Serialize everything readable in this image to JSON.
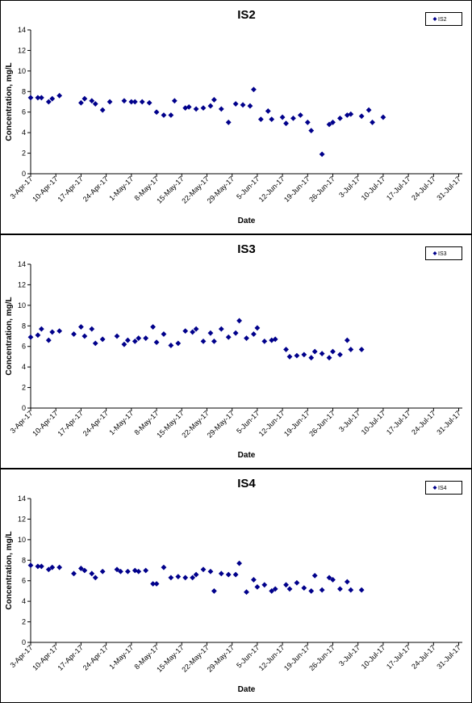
{
  "chart_data": [
    {
      "type": "scatter",
      "title": "IS2",
      "xlabel": "Date",
      "ylabel": "Concentration, mg/L",
      "ylim": [
        0,
        14
      ],
      "yticks": [
        0,
        2,
        4,
        6,
        8,
        10,
        12,
        14
      ],
      "xlim": [
        "2017-04-03",
        "2017-08-01"
      ],
      "xticks": [
        "3-Apr-17",
        "10-Apr-17",
        "17-Apr-17",
        "24-Apr-17",
        "1-May-17",
        "8-May-17",
        "15-May-17",
        "22-May-17",
        "29-May-17",
        "5-Jun-17",
        "12-Jun-17",
        "19-Jun-17",
        "26-Jun-17",
        "3-Jul-17",
        "10-Jul-17",
        "17-Jul-17",
        "24-Jul-17",
        "31-Jul-17"
      ],
      "grid": false,
      "legend": "top-right",
      "series": [
        {
          "name": "IS2",
          "color": "#00008b",
          "marker": "diamond",
          "points": [
            [
              "2017-04-03",
              7.4
            ],
            [
              "2017-04-05",
              7.4
            ],
            [
              "2017-04-06",
              7.4
            ],
            [
              "2017-04-08",
              7.0
            ],
            [
              "2017-04-09",
              7.3
            ],
            [
              "2017-04-11",
              7.6
            ],
            [
              "2017-04-17",
              6.9
            ],
            [
              "2017-04-18",
              7.3
            ],
            [
              "2017-04-20",
              7.1
            ],
            [
              "2017-04-21",
              6.8
            ],
            [
              "2017-04-23",
              6.2
            ],
            [
              "2017-04-25",
              7.0
            ],
            [
              "2017-04-29",
              7.1
            ],
            [
              "2017-05-01",
              7.0
            ],
            [
              "2017-05-02",
              7.0
            ],
            [
              "2017-05-04",
              7.0
            ],
            [
              "2017-05-06",
              6.9
            ],
            [
              "2017-05-08",
              6.0
            ],
            [
              "2017-05-10",
              5.7
            ],
            [
              "2017-05-12",
              5.7
            ],
            [
              "2017-05-13",
              7.1
            ],
            [
              "2017-05-16",
              6.4
            ],
            [
              "2017-05-17",
              6.5
            ],
            [
              "2017-05-19",
              6.3
            ],
            [
              "2017-05-21",
              6.4
            ],
            [
              "2017-05-23",
              6.6
            ],
            [
              "2017-05-24",
              7.2
            ],
            [
              "2017-05-26",
              6.3
            ],
            [
              "2017-05-28",
              5.0
            ],
            [
              "2017-05-30",
              6.8
            ],
            [
              "2017-06-01",
              6.7
            ],
            [
              "2017-06-03",
              6.6
            ],
            [
              "2017-06-04",
              8.2
            ],
            [
              "2017-06-06",
              5.3
            ],
            [
              "2017-06-08",
              6.1
            ],
            [
              "2017-06-09",
              5.3
            ],
            [
              "2017-06-12",
              5.5
            ],
            [
              "2017-06-13",
              4.9
            ],
            [
              "2017-06-15",
              5.4
            ],
            [
              "2017-06-17",
              5.7
            ],
            [
              "2017-06-19",
              5.0
            ],
            [
              "2017-06-20",
              4.2
            ],
            [
              "2017-06-23",
              1.9
            ],
            [
              "2017-06-25",
              4.8
            ],
            [
              "2017-06-26",
              5.0
            ],
            [
              "2017-06-28",
              5.4
            ],
            [
              "2017-06-30",
              5.7
            ],
            [
              "2017-07-01",
              5.8
            ],
            [
              "2017-07-04",
              5.6
            ],
            [
              "2017-07-06",
              6.2
            ],
            [
              "2017-07-07",
              5.0
            ],
            [
              "2017-07-10",
              5.5
            ]
          ]
        }
      ]
    },
    {
      "type": "scatter",
      "title": "IS3",
      "xlabel": "Date",
      "ylabel": "Concentration, mg/L",
      "ylim": [
        0,
        14
      ],
      "yticks": [
        0,
        2,
        4,
        6,
        8,
        10,
        12,
        14
      ],
      "xlim": [
        "2017-04-03",
        "2017-08-01"
      ],
      "xticks": [
        "3-Apr-17",
        "10-Apr-17",
        "17-Apr-17",
        "24-Apr-17",
        "1-May-17",
        "8-May-17",
        "15-May-17",
        "22-May-17",
        "29-May-17",
        "5-Jun-17",
        "12-Jun-17",
        "19-Jun-17",
        "26-Jun-17",
        "3-Jul-17",
        "10-Jul-17",
        "17-Jul-17",
        "24-Jul-17",
        "31-Jul-17"
      ],
      "grid": false,
      "legend": "top-right",
      "series": [
        {
          "name": "IS3",
          "color": "#00008b",
          "marker": "diamond",
          "points": [
            [
              "2017-04-03",
              6.9
            ],
            [
              "2017-04-05",
              7.1
            ],
            [
              "2017-04-06",
              7.7
            ],
            [
              "2017-04-08",
              6.6
            ],
            [
              "2017-04-09",
              7.4
            ],
            [
              "2017-04-11",
              7.5
            ],
            [
              "2017-04-15",
              7.2
            ],
            [
              "2017-04-17",
              7.9
            ],
            [
              "2017-04-18",
              7.0
            ],
            [
              "2017-04-20",
              7.7
            ],
            [
              "2017-04-21",
              6.3
            ],
            [
              "2017-04-23",
              6.7
            ],
            [
              "2017-04-27",
              7.0
            ],
            [
              "2017-04-29",
              6.2
            ],
            [
              "2017-04-30",
              6.6
            ],
            [
              "2017-05-02",
              6.5
            ],
            [
              "2017-05-03",
              6.8
            ],
            [
              "2017-05-05",
              6.8
            ],
            [
              "2017-05-07",
              7.9
            ],
            [
              "2017-05-08",
              6.4
            ],
            [
              "2017-05-10",
              7.2
            ],
            [
              "2017-05-12",
              6.1
            ],
            [
              "2017-05-14",
              6.3
            ],
            [
              "2017-05-16",
              7.5
            ],
            [
              "2017-05-18",
              7.4
            ],
            [
              "2017-05-19",
              7.7
            ],
            [
              "2017-05-21",
              6.5
            ],
            [
              "2017-05-23",
              7.3
            ],
            [
              "2017-05-24",
              6.5
            ],
            [
              "2017-05-26",
              7.7
            ],
            [
              "2017-05-28",
              6.9
            ],
            [
              "2017-05-30",
              7.3
            ],
            [
              "2017-05-31",
              8.5
            ],
            [
              "2017-06-02",
              6.8
            ],
            [
              "2017-06-04",
              7.2
            ],
            [
              "2017-06-05",
              7.8
            ],
            [
              "2017-06-07",
              6.5
            ],
            [
              "2017-06-09",
              6.6
            ],
            [
              "2017-06-10",
              6.7
            ],
            [
              "2017-06-13",
              5.7
            ],
            [
              "2017-06-14",
              5.0
            ],
            [
              "2017-06-16",
              5.1
            ],
            [
              "2017-06-18",
              5.2
            ],
            [
              "2017-06-20",
              4.9
            ],
            [
              "2017-06-21",
              5.5
            ],
            [
              "2017-06-23",
              5.3
            ],
            [
              "2017-06-25",
              4.9
            ],
            [
              "2017-06-26",
              5.5
            ],
            [
              "2017-06-28",
              5.2
            ],
            [
              "2017-06-30",
              6.6
            ],
            [
              "2017-07-01",
              5.7
            ],
            [
              "2017-07-04",
              5.7
            ]
          ]
        }
      ]
    },
    {
      "type": "scatter",
      "title": "IS4",
      "xlabel": "Date",
      "ylabel": "Concentration, mg/L",
      "ylim": [
        0,
        14
      ],
      "yticks": [
        0,
        2,
        4,
        6,
        8,
        10,
        12,
        14
      ],
      "xlim": [
        "2017-04-03",
        "2017-08-01"
      ],
      "xticks": [
        "3-Apr-17",
        "10-Apr-17",
        "17-Apr-17",
        "24-Apr-17",
        "1-May-17",
        "8-May-17",
        "15-May-17",
        "22-May-17",
        "29-May-17",
        "5-Jun-17",
        "12-Jun-17",
        "19-Jun-17",
        "26-Jun-17",
        "3-Jul-17",
        "10-Jul-17",
        "17-Jul-17",
        "24-Jul-17",
        "31-Jul-17"
      ],
      "grid": false,
      "legend": "top-right",
      "series": [
        {
          "name": "IS4",
          "color": "#00008b",
          "marker": "diamond",
          "points": [
            [
              "2017-04-03",
              7.5
            ],
            [
              "2017-04-05",
              7.4
            ],
            [
              "2017-04-06",
              7.4
            ],
            [
              "2017-04-08",
              7.1
            ],
            [
              "2017-04-09",
              7.3
            ],
            [
              "2017-04-11",
              7.3
            ],
            [
              "2017-04-15",
              6.7
            ],
            [
              "2017-04-17",
              7.2
            ],
            [
              "2017-04-18",
              7.0
            ],
            [
              "2017-04-20",
              6.7
            ],
            [
              "2017-04-21",
              6.3
            ],
            [
              "2017-04-23",
              6.9
            ],
            [
              "2017-04-27",
              7.1
            ],
            [
              "2017-04-28",
              6.9
            ],
            [
              "2017-04-30",
              6.9
            ],
            [
              "2017-05-02",
              7.0
            ],
            [
              "2017-05-03",
              6.9
            ],
            [
              "2017-05-05",
              7.0
            ],
            [
              "2017-05-07",
              5.7
            ],
            [
              "2017-05-08",
              5.7
            ],
            [
              "2017-05-10",
              7.3
            ],
            [
              "2017-05-12",
              6.3
            ],
            [
              "2017-05-14",
              6.4
            ],
            [
              "2017-05-16",
              6.3
            ],
            [
              "2017-05-18",
              6.3
            ],
            [
              "2017-05-19",
              6.6
            ],
            [
              "2017-05-21",
              7.1
            ],
            [
              "2017-05-23",
              6.9
            ],
            [
              "2017-05-24",
              5.0
            ],
            [
              "2017-05-26",
              6.7
            ],
            [
              "2017-05-28",
              6.6
            ],
            [
              "2017-05-30",
              6.6
            ],
            [
              "2017-05-31",
              7.7
            ],
            [
              "2017-06-02",
              4.9
            ],
            [
              "2017-06-04",
              6.1
            ],
            [
              "2017-06-05",
              5.4
            ],
            [
              "2017-06-07",
              5.6
            ],
            [
              "2017-06-09",
              5.0
            ],
            [
              "2017-06-10",
              5.2
            ],
            [
              "2017-06-13",
              5.6
            ],
            [
              "2017-06-14",
              5.2
            ],
            [
              "2017-06-16",
              5.8
            ],
            [
              "2017-06-18",
              5.3
            ],
            [
              "2017-06-20",
              5.0
            ],
            [
              "2017-06-21",
              6.5
            ],
            [
              "2017-06-23",
              5.1
            ],
            [
              "2017-06-25",
              6.3
            ],
            [
              "2017-06-26",
              6.1
            ],
            [
              "2017-06-28",
              5.2
            ],
            [
              "2017-06-30",
              5.9
            ],
            [
              "2017-07-01",
              5.1
            ],
            [
              "2017-07-04",
              5.1
            ]
          ]
        }
      ]
    }
  ]
}
